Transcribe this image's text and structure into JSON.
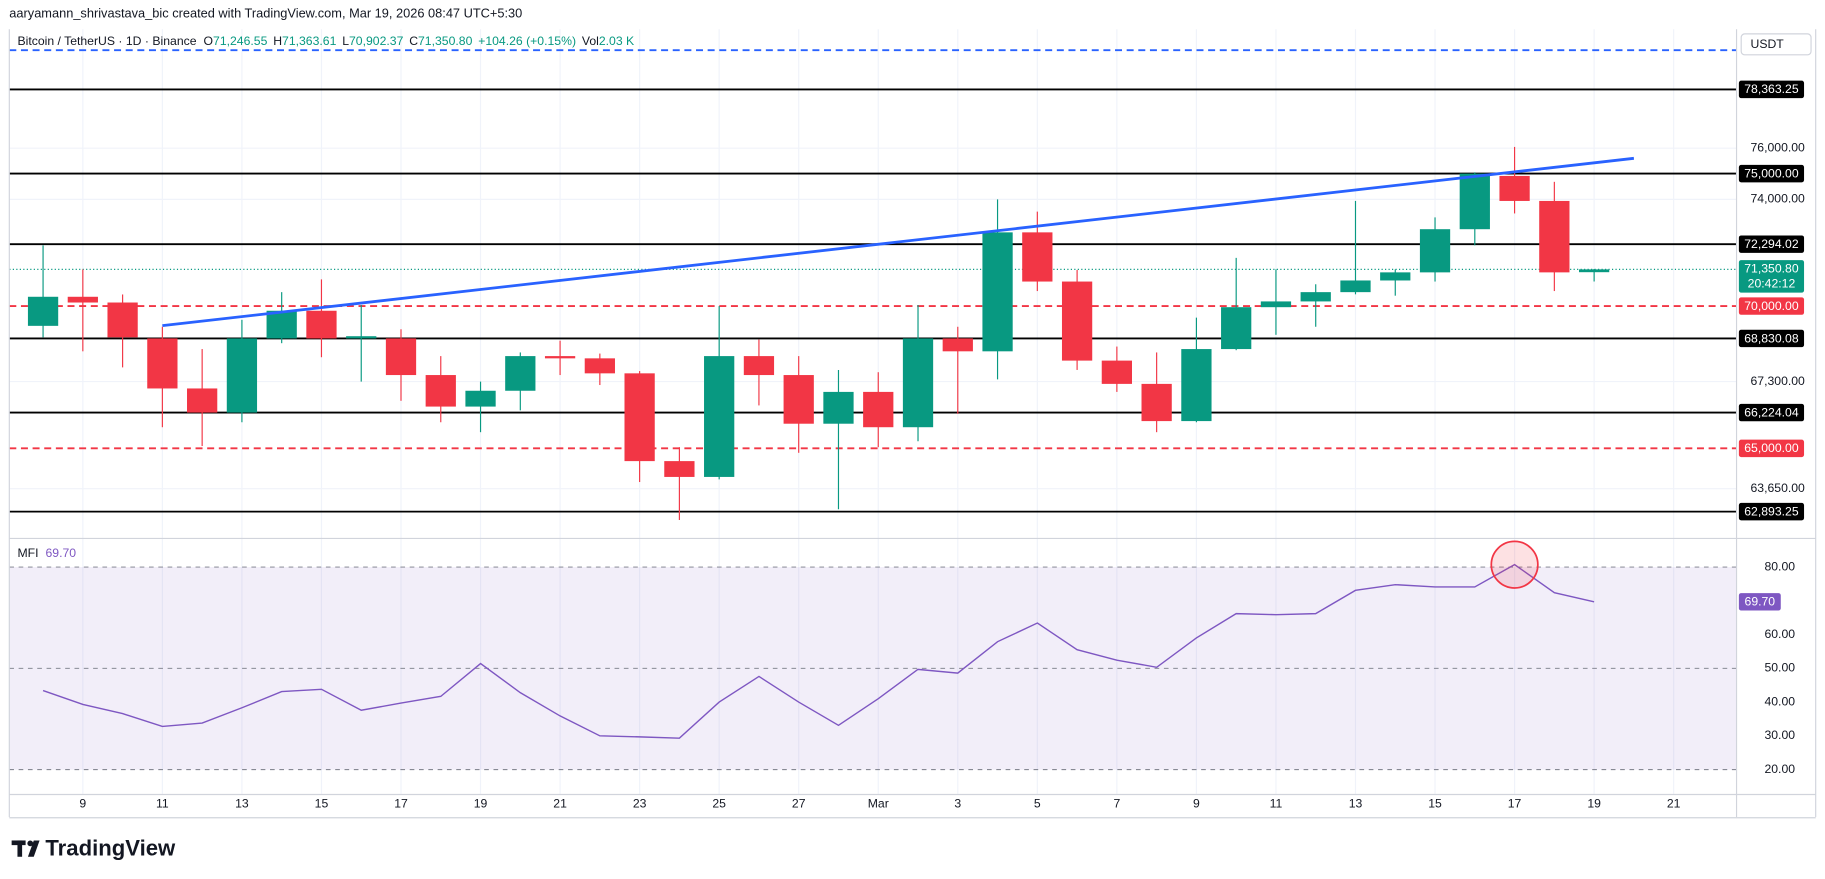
{
  "attribution": "aaryamann_shrivastava_bic created with TradingView.com, Mar 19, 2026 08:47 UTC+5:30",
  "brand": "TradingView",
  "chart_data": [
    {
      "type": "candlestick",
      "title": "Bitcoin / TetherUS · 1D · Binance",
      "ohlc_legend": [
        {
          "key": "O",
          "value": "71,246.55"
        },
        {
          "key": "H",
          "value": "71,363.61"
        },
        {
          "key": "L",
          "value": "70,902.37"
        },
        {
          "key": "C",
          "value": "71,350.80"
        }
      ],
      "change": "+104.26 (+0.15%)",
      "volume": {
        "key": "Vol",
        "value": "2.03 K"
      },
      "currency": "USDT",
      "categories": [
        null,
        "9",
        null,
        "11",
        null,
        "13",
        null,
        "15",
        null,
        "17",
        null,
        "19",
        null,
        "21",
        null,
        "23",
        null,
        "25",
        null,
        "27",
        null,
        "Mar",
        null,
        "3",
        null,
        "5",
        null,
        "7",
        null,
        "9",
        null,
        "11",
        null,
        "13",
        null,
        "15",
        null,
        "17",
        null,
        "19",
        null,
        "21"
      ],
      "open": [
        69283,
        70340,
        70130,
        68830,
        67060,
        66224,
        68830,
        69830,
        68830,
        68830,
        67530,
        66430,
        66980,
        68200,
        68120,
        67590,
        64570,
        64040,
        68200,
        67530,
        65840,
        66940,
        65720,
        68830,
        68370,
        72740,
        70900,
        68040,
        67220,
        65930,
        68450,
        69960,
        70170,
        70510,
        70940,
        71240,
        72860,
        74910,
        73940,
        71246.55,
        null,
        null
      ],
      "high": [
        72250,
        71350,
        70425,
        69250,
        68450,
        69500,
        70510,
        70980,
        70040,
        69160,
        68200,
        67300,
        68330,
        68750,
        68290,
        67670,
        65040,
        70000,
        68790,
        68200,
        67710,
        67630,
        70040,
        69250,
        74000,
        73530,
        71330,
        68540,
        68330,
        69580,
        71780,
        71350,
        70800,
        73940,
        71350,
        73310,
        75050,
        76050,
        74680,
        71363.61,
        null,
        null
      ],
      "low": [
        68870,
        68370,
        67800,
        65720,
        65080,
        65890,
        68660,
        68160,
        67300,
        66630,
        65890,
        65550,
        66300,
        67530,
        67180,
        63870,
        62620,
        63960,
        66470,
        64850,
        62970,
        65040,
        65240,
        66180,
        67380,
        70550,
        67710,
        66940,
        65550,
        65890,
        68410,
        68960,
        69250,
        70430,
        70380,
        70900,
        72250,
        73460,
        70550,
        70902.37,
        null,
        null
      ],
      "close": [
        70340,
        70130,
        68870,
        67060,
        66224,
        68830,
        69830,
        68830,
        68910,
        67530,
        66430,
        66980,
        68200,
        68120,
        67590,
        64570,
        64040,
        68200,
        67530,
        65840,
        66940,
        65720,
        68830,
        68370,
        72740,
        70900,
        68040,
        67220,
        65930,
        68450,
        69960,
        70170,
        70510,
        70940,
        71240,
        72860,
        75000,
        73940,
        71240,
        71350.8,
        null,
        null
      ],
      "up_color": "#089981",
      "down_color": "#f23645",
      "ylim": [
        62040,
        80858
      ],
      "log_scale": true,
      "yticks": [
        {
          "value": 76000,
          "label": "76,000.00"
        },
        {
          "value": 74000,
          "label": "74,000.00"
        },
        {
          "value": 67300,
          "label": "67,300.00"
        },
        {
          "value": 63650,
          "label": "63,650.00"
        }
      ],
      "grid": true,
      "levels": [
        {
          "value": 79980,
          "color": "#2962ff",
          "dashed": true
        },
        {
          "value": 78363.25,
          "label": "78,363.25",
          "color": "#000000",
          "dashed": false
        },
        {
          "value": 75000,
          "label": "75,000.00",
          "color": "#000000",
          "dashed": false
        },
        {
          "value": 72294.02,
          "label": "72,294.02",
          "color": "#000000",
          "dashed": false
        },
        {
          "value": 70000,
          "label": "70,000.00",
          "color": "#f23645",
          "dashed": true
        },
        {
          "value": 68830.08,
          "label": "68,830.08",
          "color": "#000000",
          "dashed": false
        },
        {
          "value": 66224.04,
          "label": "66,224.04",
          "color": "#000000",
          "dashed": false
        },
        {
          "value": 65000,
          "label": "65,000.00",
          "color": "#f23645",
          "dashed": true
        },
        {
          "value": 62893.25,
          "label": "62,893.25",
          "color": "#000000",
          "dashed": false
        }
      ],
      "trendline": {
        "x": [
          3,
          40
        ],
        "y": [
          69290,
          75600
        ],
        "color": "#2962ff"
      },
      "last_price": {
        "value": 71350.8,
        "label": "71,350.80",
        "countdown": "20:42:12"
      }
    },
    {
      "type": "line",
      "title": "MFI",
      "series": [
        {
          "name": "MFI",
          "color": "#7e57c2",
          "values": [
            43.4,
            39.3,
            36.6,
            32.8,
            33.8,
            38.3,
            43.1,
            43.8,
            37.6,
            39.7,
            41.7,
            51.4,
            42.8,
            35.9,
            30.0,
            29.7,
            29.3,
            40.0,
            47.6,
            40.0,
            33.1,
            41.0,
            49.7,
            48.6,
            57.9,
            63.4,
            55.5,
            52.4,
            50.3,
            59.0,
            66.2,
            65.9,
            66.2,
            73.1,
            74.8,
            74.1,
            74.1,
            80.7,
            72.4,
            69.7,
            null,
            null
          ]
        }
      ],
      "last_value": {
        "value": 69.7,
        "label": "69.70"
      },
      "ylim": [
        12.8,
        88.3
      ],
      "yticks": [
        {
          "value": 80,
          "label": "80.00"
        },
        {
          "value": 60,
          "label": "60.00"
        },
        {
          "value": 50,
          "label": "50.00"
        },
        {
          "value": 40,
          "label": "40.00"
        },
        {
          "value": 30,
          "label": "30.00"
        },
        {
          "value": 20,
          "label": "20.00"
        }
      ],
      "band_lines": [
        80,
        50,
        20
      ],
      "highlight_color": "#f23645"
    }
  ]
}
